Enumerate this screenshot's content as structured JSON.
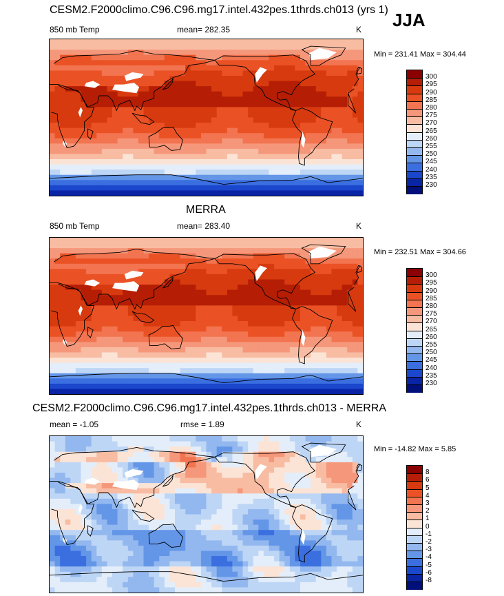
{
  "season": "JJA",
  "chart_data": [
    {
      "type": "heatmap",
      "title": "CESM2.F2000climo.C96.C96.mg17.intel.432pes.1thrds.ch013 (yrs 1)",
      "left_label": "850 mb Temp",
      "center_label": "mean= 282.35",
      "units": "K",
      "min_max": "Min = 231.41 Max = 304.44",
      "colorbar": {
        "levels": [
          "300",
          "295",
          "290",
          "285",
          "280",
          "275",
          "270",
          "265",
          "260",
          "255",
          "250",
          "245",
          "240",
          "235",
          "230"
        ],
        "colors": [
          "#8b0000",
          "#b51e05",
          "#d63a0e",
          "#ea5225",
          "#f27450",
          "#f5977a",
          "#f8bca3",
          "#fbe4d6",
          "#e4eefa",
          "#bed6f5",
          "#93b8ef",
          "#6496e8",
          "#3b6fe0",
          "#1a47cc",
          "#0a24a6",
          "#000f7a"
        ]
      },
      "field": "model"
    },
    {
      "type": "heatmap",
      "title": "MERRA",
      "left_label": "850 mb Temp",
      "center_label": "mean= 283.40",
      "units": "K",
      "min_max": "Min = 232.51 Max = 304.66",
      "colorbar": {
        "levels": [
          "300",
          "295",
          "290",
          "285",
          "280",
          "275",
          "270",
          "265",
          "260",
          "255",
          "250",
          "245",
          "240",
          "235",
          "230"
        ],
        "colors": [
          "#8b0000",
          "#b51e05",
          "#d63a0e",
          "#ea5225",
          "#f27450",
          "#f5977a",
          "#f8bca3",
          "#fbe4d6",
          "#e4eefa",
          "#bed6f5",
          "#93b8ef",
          "#6496e8",
          "#3b6fe0",
          "#1a47cc",
          "#0a24a6",
          "#000f7a"
        ]
      },
      "field": "obs"
    },
    {
      "type": "heatmap",
      "title": "CESM2.F2000climo.C96.C96.mg17.intel.432pes.1thrds.ch013 - MERRA",
      "left_label": "mean =  -1.05",
      "center_label": "rmse =   1.89",
      "units": "K",
      "min_max": "Min = -14.82 Max =   5.85",
      "colorbar": {
        "levels": [
          "8",
          "6",
          "5",
          "4",
          "3",
          "2",
          "1",
          "0",
          "-1",
          "-2",
          "-3",
          "-4",
          "-5",
          "-6",
          "-8"
        ],
        "colors": [
          "#8b0000",
          "#b51e05",
          "#d63a0e",
          "#ea5225",
          "#f27450",
          "#f5977a",
          "#f8bca3",
          "#fbe4d6",
          "#e4eefa",
          "#bed6f5",
          "#93b8ef",
          "#6496e8",
          "#3b6fe0",
          "#1a47cc",
          "#0a24a6",
          "#000f7a"
        ]
      },
      "field": "diff"
    }
  ]
}
